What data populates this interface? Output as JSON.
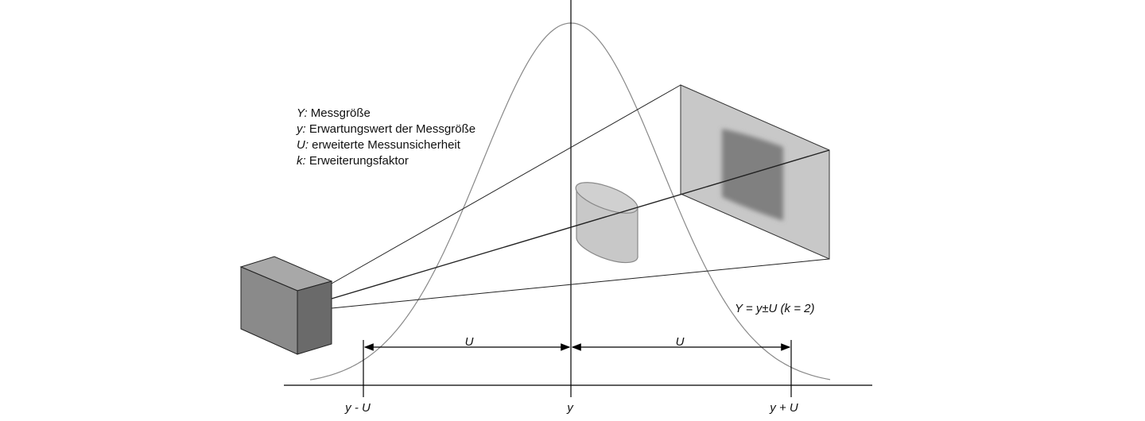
{
  "legend": [
    {
      "symbol": "Y:",
      "text": "Messgröße"
    },
    {
      "symbol": "y:",
      "text": "Erwartungswert der Messgröße"
    },
    {
      "symbol": "U:",
      "text": "erweiterte Messunsicherheit"
    },
    {
      "symbol": "k:",
      "text": "Erweiterungsfaktor"
    }
  ],
  "formula": "Y = y±U (k = 2)",
  "interval_labels": [
    "U",
    "U"
  ],
  "axis_labels": [
    "y - U",
    "y",
    "y + U"
  ]
}
